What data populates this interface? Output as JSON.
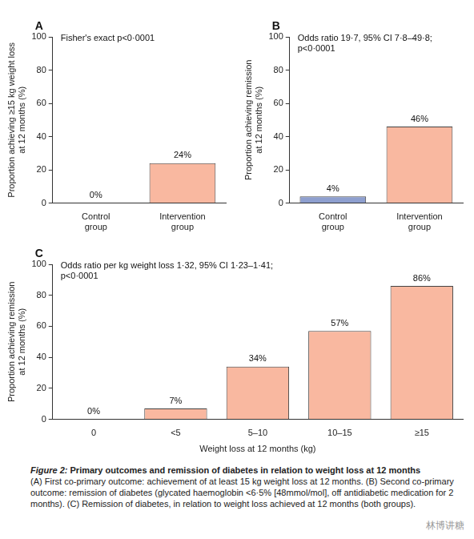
{
  "chart_data": [
    {
      "type": "bar",
      "panel": "A",
      "annotation": [
        "Fisher's exact p<0·0001"
      ],
      "y_label": [
        "Proportion achieving ≥15 kg weight loss",
        "at 12 months (%)"
      ],
      "categories": [
        "Control group",
        "Intervention group"
      ],
      "values": [
        0,
        24
      ],
      "value_labels": [
        "0%",
        "24%"
      ],
      "colors": [
        "#8e9fcf",
        "#f9b8a0"
      ],
      "ylim": [
        0,
        100
      ],
      "yticks": [
        0,
        20,
        40,
        60,
        80,
        100
      ],
      "grid": false,
      "data_labels": true
    },
    {
      "type": "bar",
      "panel": "B",
      "annotation": [
        "Odds ratio 19·7, 95% CI 7·8–49·8;",
        "p<0·0001"
      ],
      "y_label": [
        "Proportion achieving remission",
        "at 12 months (%)"
      ],
      "categories": [
        "Control group",
        "Intervention group"
      ],
      "values": [
        4,
        46
      ],
      "value_labels": [
        "4%",
        "46%"
      ],
      "colors": [
        "#8e9fcf",
        "#f9b8a0"
      ],
      "ylim": [
        0,
        100
      ],
      "yticks": [
        0,
        20,
        40,
        60,
        80,
        100
      ],
      "grid": false,
      "data_labels": true
    },
    {
      "type": "bar",
      "panel": "C",
      "annotation": [
        "Odds ratio per kg weight loss 1·32, 95% CI 1·23–1·41;",
        "p<0·0001"
      ],
      "y_label": [
        "Proportion achieving remission",
        "at 12 months (%)"
      ],
      "x_label": "Weight loss at 12 months (kg)",
      "categories": [
        "0",
        "<5",
        "5–10",
        "10–15",
        "≥15"
      ],
      "values": [
        0,
        7,
        34,
        57,
        86
      ],
      "value_labels": [
        "0%",
        "7%",
        "34%",
        "57%",
        "86%"
      ],
      "colors": [
        "#f9b8a0",
        "#f9b8a0",
        "#f9b8a0",
        "#f9b8a0",
        "#f9b8a0"
      ],
      "ylim": [
        0,
        100
      ],
      "yticks": [
        0,
        20,
        40,
        60,
        80,
        100
      ],
      "grid": false,
      "data_labels": true
    }
  ],
  "figure_caption": {
    "label": "Figure 2:",
    "title": "Primary outcomes and remission of diabetes in relation to weight loss at 12 months",
    "text": "(A) First co-primary outcome: achievement of at least 15 kg weight loss at 12 months. (B) Second co-primary outcome: remission of diabetes (glycated haemoglobin <6·5% [48mmol/mol], off antidiabetic medication for 2 months). (C) Remission of diabetes, in relation to weight loss achieved at 12 months (both groups)."
  },
  "watermark": "林博讲糖"
}
